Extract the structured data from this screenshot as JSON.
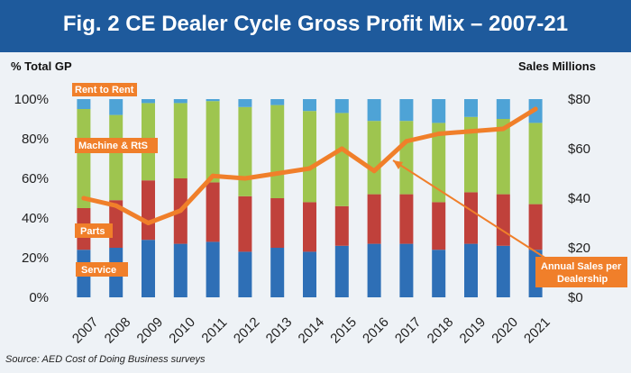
{
  "title": "Fig. 2 CE Dealer Cycle Gross Profit Mix – 2007-21",
  "source": "Source: AED Cost of Doing Business surveys",
  "colors": {
    "header": "#1e5a9c",
    "service": "#2e6fb6",
    "parts": "#c0413b",
    "machine": "#9ec54f",
    "rent": "#4ea3d6",
    "sales_line": "#f07f2a",
    "label_box": "#f07f2a"
  },
  "chart_data": {
    "type": "bar",
    "stacked": true,
    "categories": [
      "2007",
      "2008",
      "2009",
      "2010",
      "2011",
      "2012",
      "2013",
      "2014",
      "2015",
      "2016",
      "2017",
      "2018",
      "2019",
      "2020",
      "2021"
    ],
    "ylabel_left": "% Total GP",
    "ylabel_right": "Sales Millions",
    "ylim_left": [
      0,
      100
    ],
    "ylim_right": [
      0,
      80
    ],
    "left_ticks": [
      "0%",
      "20%",
      "40%",
      "60%",
      "80%",
      "100%"
    ],
    "right_ticks": [
      "$0",
      "$20",
      "$40",
      "$60",
      "$80"
    ],
    "grid": false,
    "series": [
      {
        "name": "Service",
        "values": [
          24,
          25,
          29,
          27,
          28,
          23,
          25,
          23,
          26,
          27,
          27,
          24,
          27,
          26,
          24
        ]
      },
      {
        "name": "Parts",
        "values": [
          21,
          24,
          30,
          33,
          30,
          28,
          25,
          25,
          20,
          25,
          25,
          24,
          26,
          26,
          23
        ]
      },
      {
        "name": "Machine & RtS",
        "values": [
          50,
          43,
          39,
          38,
          41,
          45,
          47,
          46,
          47,
          37,
          37,
          40,
          38,
          38,
          41
        ]
      },
      {
        "name": "Rent to Rent",
        "values": [
          5,
          8,
          2,
          2,
          1,
          4,
          3,
          6,
          7,
          11,
          11,
          12,
          9,
          10,
          12
        ]
      }
    ],
    "line": {
      "name": "Annual Sales per Dealership",
      "axis": "right",
      "values": [
        40,
        37,
        30,
        35,
        49,
        48,
        50,
        52,
        60,
        51,
        63,
        66,
        67,
        68,
        76
      ]
    },
    "labels": {
      "rent": "Rent to Rent",
      "machine": "Machine & RtS",
      "parts": "Parts",
      "service": "Service",
      "sales_line_1": "Annual Sales per",
      "sales_line_2": "Dealership"
    }
  }
}
